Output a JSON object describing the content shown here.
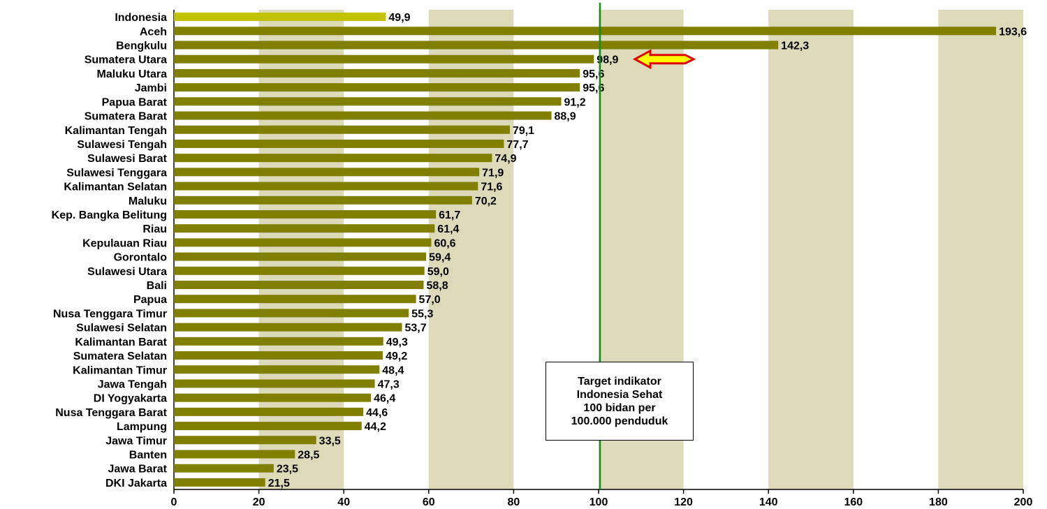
{
  "chart_data": {
    "type": "bar",
    "orientation": "horizontal",
    "categories": [
      "Indonesia",
      "Aceh",
      "Bengkulu",
      "Sumatera Utara",
      "Maluku Utara",
      "Jambi",
      "Papua Barat",
      "Sumatera Barat",
      "Kalimantan Tengah",
      "Sulawesi Tengah",
      "Sulawesi Barat",
      "Sulawesi Tenggara",
      "Kalimantan Selatan",
      "Maluku",
      "Kep. Bangka Belitung",
      "Riau",
      "Kepulauan Riau",
      "Gorontalo",
      "Sulawesi Utara",
      "Bali",
      "Papua",
      "Nusa Tenggara Timur",
      "Sulawesi Selatan",
      "Kalimantan Barat",
      "Sumatera Selatan",
      "Kalimantan Timur",
      "Jawa Tengah",
      "DI Yogyakarta",
      "Nusa Tenggara Barat",
      "Lampung",
      "Jawa Timur",
      "Banten",
      "Jawa Barat",
      "DKI Jakarta"
    ],
    "values": [
      49.9,
      193.6,
      142.3,
      98.9,
      95.6,
      95.6,
      91.2,
      88.9,
      79.1,
      77.7,
      74.9,
      71.9,
      71.6,
      70.2,
      61.7,
      61.4,
      60.6,
      59.4,
      59.0,
      58.8,
      57.0,
      55.3,
      53.7,
      49.3,
      49.2,
      48.4,
      47.3,
      46.4,
      44.6,
      44.2,
      33.5,
      28.5,
      23.5,
      21.5
    ],
    "value_labels": [
      "49,9",
      "193,6",
      "142,3",
      "98,9",
      "95,6",
      "95,6",
      "91,2",
      "88,9",
      "79,1",
      "77,7",
      "74,9",
      "71,9",
      "71,6",
      "70,2",
      "61,7",
      "61,4",
      "60,6",
      "59,4",
      "59,0",
      "58,8",
      "57,0",
      "55,3",
      "53,7",
      "49,3",
      "49,2",
      "48,4",
      "47,3",
      "46,4",
      "44,6",
      "44,2",
      "33,5",
      "28,5",
      "23,5",
      "21,5"
    ],
    "xlim": [
      0,
      200
    ],
    "xticks": [
      "0",
      "20",
      "40",
      "60",
      "80",
      "100",
      "120",
      "140",
      "160",
      "180",
      "200"
    ],
    "xtick_values": [
      0,
      20,
      40,
      60,
      80,
      100,
      120,
      140,
      160,
      180,
      200
    ],
    "title": "",
    "xlabel": "",
    "ylabel": "",
    "grid": "alternating vertical bands",
    "reference_line": {
      "value": 100,
      "color": "#1a8a1a"
    },
    "annotation": "Target indikator\nIndonesia Sehat\n100 bidan per\n100.000 penduduk",
    "highlight": {
      "category": "Sumatera Utara",
      "marker": "arrow"
    },
    "colors": {
      "bar": "#807f00",
      "national_bar": "#c2c200",
      "band": "#dcdab9",
      "arrow_fill": "#ffff00",
      "arrow_stroke": "#e00000"
    }
  }
}
